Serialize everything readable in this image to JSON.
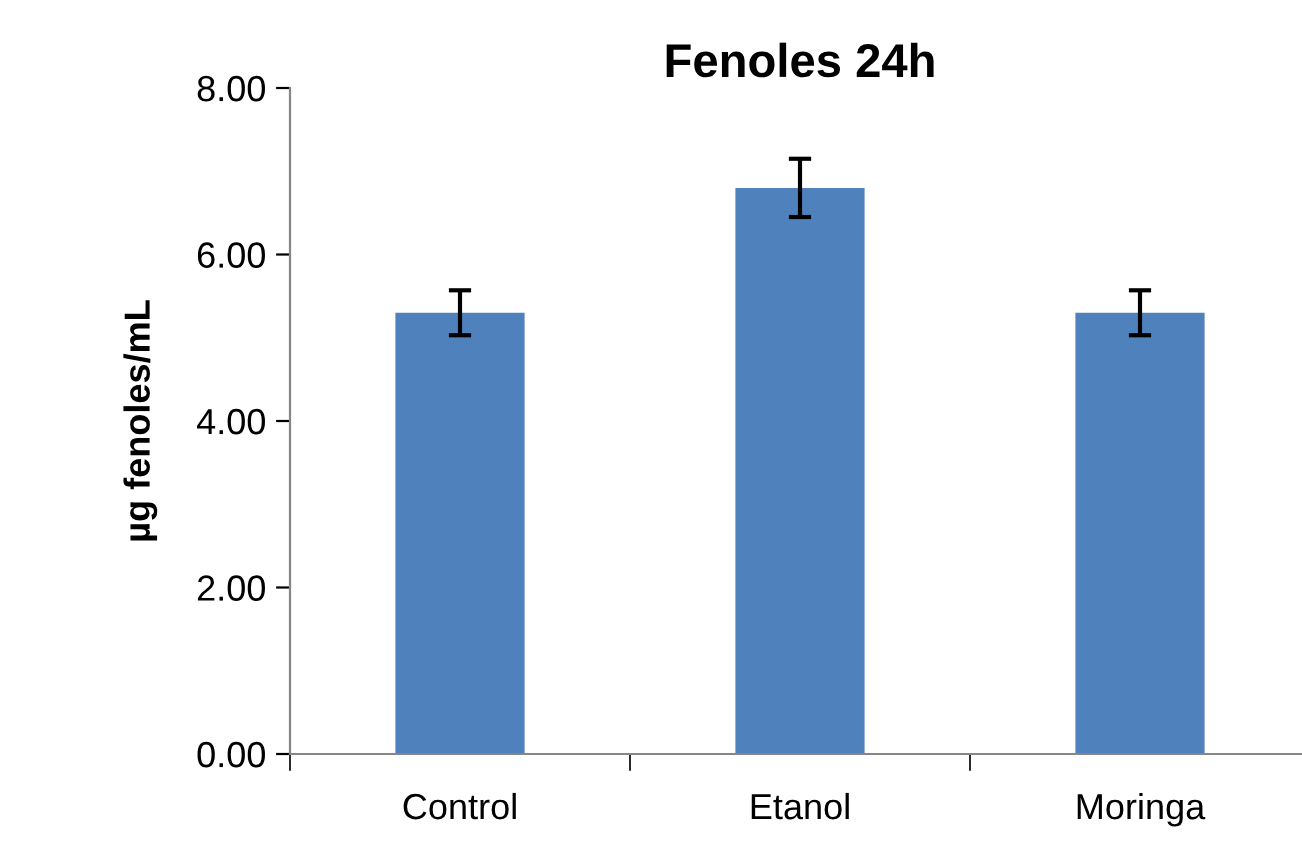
{
  "chart_data": {
    "type": "bar",
    "title": "Fenoles 24h",
    "ylabel": "µg fenoles/mL",
    "categories": [
      "Control",
      "Etanol",
      "Moringa"
    ],
    "values": [
      5.3,
      6.8,
      5.3
    ],
    "errors": [
      0.27,
      0.35,
      0.27
    ],
    "color": "#4f81bd",
    "ylim": [
      0,
      8
    ],
    "yticks": [
      {
        "value": 0,
        "label": "0.00"
      },
      {
        "value": 2,
        "label": "2.00"
      },
      {
        "value": 4,
        "label": "4.00"
      },
      {
        "value": 6,
        "label": "6.00"
      },
      {
        "value": 8,
        "label": "8.00"
      }
    ],
    "grid": false,
    "legend": false
  }
}
